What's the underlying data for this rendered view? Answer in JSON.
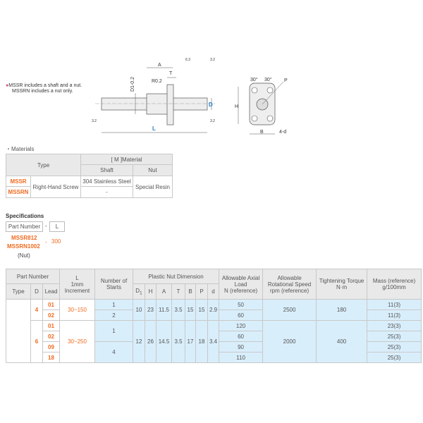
{
  "note": {
    "line1": "MSSR includes a shaft and a nut.",
    "line2": "MSSRN includes a nut only."
  },
  "drawing": {
    "labels": {
      "A": "A",
      "T": "T",
      "R": "R0.2",
      "D1": "D1-0.2",
      "D": "D",
      "L": "L",
      "H": "H",
      "B": "B",
      "P": "P",
      "d": "4-d",
      "angle1": "30°",
      "angle2": "30°",
      "rough1": "6.3",
      "rough2": "3.2",
      "rough3": "3.2",
      "rough4": "3.2"
    }
  },
  "materials": {
    "title": "・Materials",
    "header": {
      "type": "Type",
      "material": "[ M ]Material",
      "shaft": "Shaft",
      "nut": "Nut"
    },
    "rows": [
      {
        "code": "MSSR",
        "screw": "Right-Hand Screw",
        "shaft": "304 Stainless Steel",
        "nut": "Special Resin"
      },
      {
        "code": "MSSRN",
        "shaft": "-"
      }
    ]
  },
  "spec": {
    "title": "Specifications",
    "part_label": "Part Number",
    "dash": "-",
    "l_label": "L",
    "ex1": "MSSR812",
    "ex2": "MSSRN1002",
    "ex_l": "300",
    "nut_note": "(Nut)"
  },
  "table": {
    "headers": {
      "part_number": "Part Number",
      "type": "Type",
      "d": "D",
      "lead": "Lead",
      "l": "L",
      "l_sub1": "1mm",
      "l_sub2": "Increment",
      "starts1": "Number of",
      "starts2": "Starts",
      "nut_dim": "Plastic Nut Dimension",
      "d1": "D",
      "d1_sub": "1",
      "h": "H",
      "a": "A",
      "t": "T",
      "b": "B",
      "p": "P",
      "dd": "d",
      "axial1": "Allowable Axial",
      "axial2": "Load",
      "axial3": "N (reference)",
      "speed1": "Allowable",
      "speed2": "Rotational Speed",
      "speed3": "rpm (reference)",
      "torque1": "Tightening Torque",
      "torque2": "N·m",
      "mass1": "Mass (reference)",
      "mass2": "g/100mm"
    },
    "groups": [
      {
        "d": "4",
        "l": "30~150",
        "starts": [
          "1",
          "2"
        ],
        "dims": [
          "10",
          "23",
          "11.5",
          "3.5",
          "15",
          "15",
          "2.9"
        ],
        "speed": "2500",
        "torque": "180",
        "rows": [
          {
            "lead": "01",
            "load": "50",
            "mass": "11(3)"
          },
          {
            "lead": "02",
            "load": "60",
            "mass": "11(3)"
          }
        ]
      },
      {
        "d": "6",
        "l": "30~250",
        "starts": [
          "1",
          "4"
        ],
        "dims": [
          "12",
          "26",
          "14.5",
          "3.5",
          "17",
          "18",
          "3.4"
        ],
        "speed": "2000",
        "torque": "400",
        "rows": [
          {
            "lead": "01",
            "load": "120",
            "mass": "23(3)"
          },
          {
            "lead": "02",
            "load": "60",
            "mass": "25(3)"
          },
          {
            "lead": "09",
            "load": "90",
            "mass": "25(3)"
          },
          {
            "lead": "18",
            "load": "110",
            "mass": "25(3)"
          }
        ]
      }
    ]
  }
}
